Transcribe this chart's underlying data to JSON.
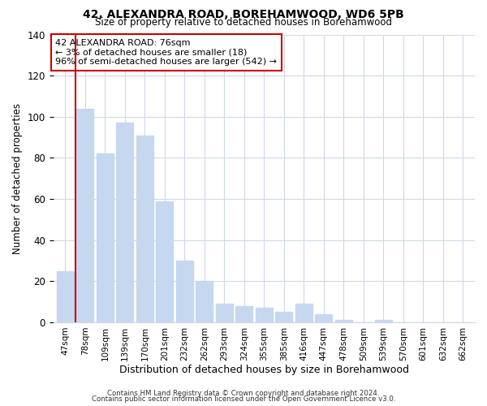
{
  "title": "42, ALEXANDRA ROAD, BOREHAMWOOD, WD6 5PB",
  "subtitle": "Size of property relative to detached houses in Borehamwood",
  "xlabel": "Distribution of detached houses by size in Borehamwood",
  "ylabel": "Number of detached properties",
  "bar_labels": [
    "47sqm",
    "78sqm",
    "109sqm",
    "139sqm",
    "170sqm",
    "201sqm",
    "232sqm",
    "262sqm",
    "293sqm",
    "324sqm",
    "355sqm",
    "385sqm",
    "416sqm",
    "447sqm",
    "478sqm",
    "509sqm",
    "539sqm",
    "570sqm",
    "601sqm",
    "632sqm",
    "662sqm"
  ],
  "bar_values": [
    25,
    104,
    82,
    97,
    91,
    59,
    30,
    20,
    9,
    8,
    7,
    5,
    9,
    4,
    1,
    0,
    1,
    0,
    0,
    0,
    0
  ],
  "bar_color": "#c5d8f0",
  "highlight_line_idx": 0,
  "highlight_color": "#cc0000",
  "annotation_title": "42 ALEXANDRA ROAD: 76sqm",
  "annotation_line1": "← 3% of detached houses are smaller (18)",
  "annotation_line2": "96% of semi-detached houses are larger (542) →",
  "annotation_box_color": "#ffffff",
  "annotation_box_edge": "#cc0000",
  "footer_line1": "Contains HM Land Registry data © Crown copyright and database right 2024.",
  "footer_line2": "Contains public sector information licensed under the Open Government Licence v3.0.",
  "ylim": [
    0,
    140
  ],
  "background_color": "#ffffff",
  "grid_color": "#d0d8e8"
}
